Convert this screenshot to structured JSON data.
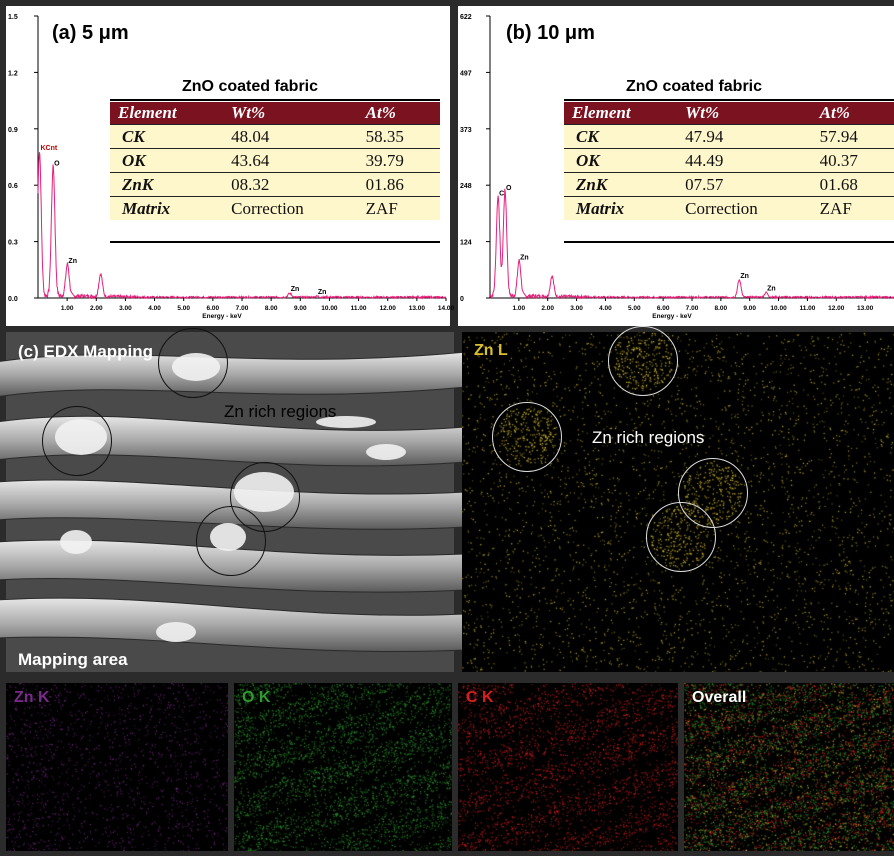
{
  "panel_a": {
    "label": "(a) 5 μm",
    "table_title": "ZnO coated fabric",
    "headers": [
      "Element",
      "Wt%",
      "At%"
    ],
    "rows": [
      [
        "CK",
        "48.04",
        "58.35"
      ],
      [
        "OK",
        "43.64",
        "39.79"
      ],
      [
        "ZnK",
        "08.32",
        "01.86"
      ],
      [
        "Matrix",
        "Correction",
        "ZAF"
      ]
    ]
  },
  "panel_b": {
    "label": "(b) 10 μm",
    "table_title": "ZnO coated fabric",
    "headers": [
      "Element",
      "Wt%",
      "At%"
    ],
    "rows": [
      [
        "CK",
        "47.94",
        "57.94"
      ],
      [
        "OK",
        "44.49",
        "40.37"
      ],
      [
        "ZnK",
        "07.57",
        "01.68"
      ],
      [
        "Matrix",
        "Correction",
        "ZAF"
      ]
    ]
  },
  "panel_c": {
    "label": "(c) EDX Mapping",
    "zn_rich": "Zn rich regions",
    "mapping_area": "Mapping area"
  },
  "zn_l_map": {
    "label": "Zn L",
    "zn_rich": "Zn rich regions",
    "color": "#d8c030"
  },
  "small_maps": [
    {
      "label": "Zn K",
      "color": "#7a2a8a"
    },
    {
      "label": "O K",
      "color": "#2f9a2f"
    },
    {
      "label": "C K",
      "color": "#d42020"
    },
    {
      "label": "Overall",
      "color": "#ffffff"
    }
  ],
  "chart_data": [
    {
      "type": "line",
      "title": "(a) 5 μm",
      "xlabel": "Energy - keV",
      "ylabel": "",
      "xlim": [
        0,
        14
      ],
      "ylim": [
        0,
        1.5
      ],
      "x_ticks": [
        "1.00",
        "2.00",
        "3.00",
        "4.00",
        "5.00",
        "6.00",
        "7.00",
        "8.00",
        "9.00",
        "10.00",
        "11.00",
        "12.00",
        "13.00",
        "14.00"
      ],
      "y_ticks": [
        "0.0",
        "0.3",
        "0.6",
        "0.9",
        "1.2",
        "1.5"
      ],
      "peaks": [
        {
          "label": "KCnt",
          "x": 0.05,
          "y": 0.77
        },
        {
          "label": "O",
          "x": 0.52,
          "y": 0.69
        },
        {
          "label": "Zn",
          "x": 1.01,
          "y": 0.17
        },
        {
          "label": "",
          "x": 2.15,
          "y": 0.12
        },
        {
          "label": "Zn",
          "x": 8.64,
          "y": 0.02
        },
        {
          "label": "Zn",
          "x": 9.57,
          "y": 0.005
        }
      ],
      "color": "#e8207a"
    },
    {
      "type": "line",
      "title": "(b) 10 μm",
      "xlabel": "Energy - keV",
      "ylabel": "",
      "xlim": [
        0,
        14
      ],
      "ylim": [
        0,
        622
      ],
      "x_ticks": [
        "1.00",
        "2.00",
        "3.00",
        "4.00",
        "5.00",
        "6.00",
        "7.00",
        "8.00",
        "9.00",
        "10.00",
        "11.00",
        "12.00",
        "13.00"
      ],
      "y_ticks": [
        "0",
        "124",
        "248",
        "373",
        "497",
        "622"
      ],
      "peaks": [
        {
          "label": "C",
          "x": 0.28,
          "y": 220
        },
        {
          "label": "O",
          "x": 0.52,
          "y": 232
        },
        {
          "label": "Zn",
          "x": 1.01,
          "y": 78
        },
        {
          "label": "",
          "x": 2.15,
          "y": 45
        },
        {
          "label": "Zn",
          "x": 8.64,
          "y": 38
        },
        {
          "label": "Zn",
          "x": 9.57,
          "y": 10
        }
      ],
      "color": "#e8207a"
    }
  ]
}
